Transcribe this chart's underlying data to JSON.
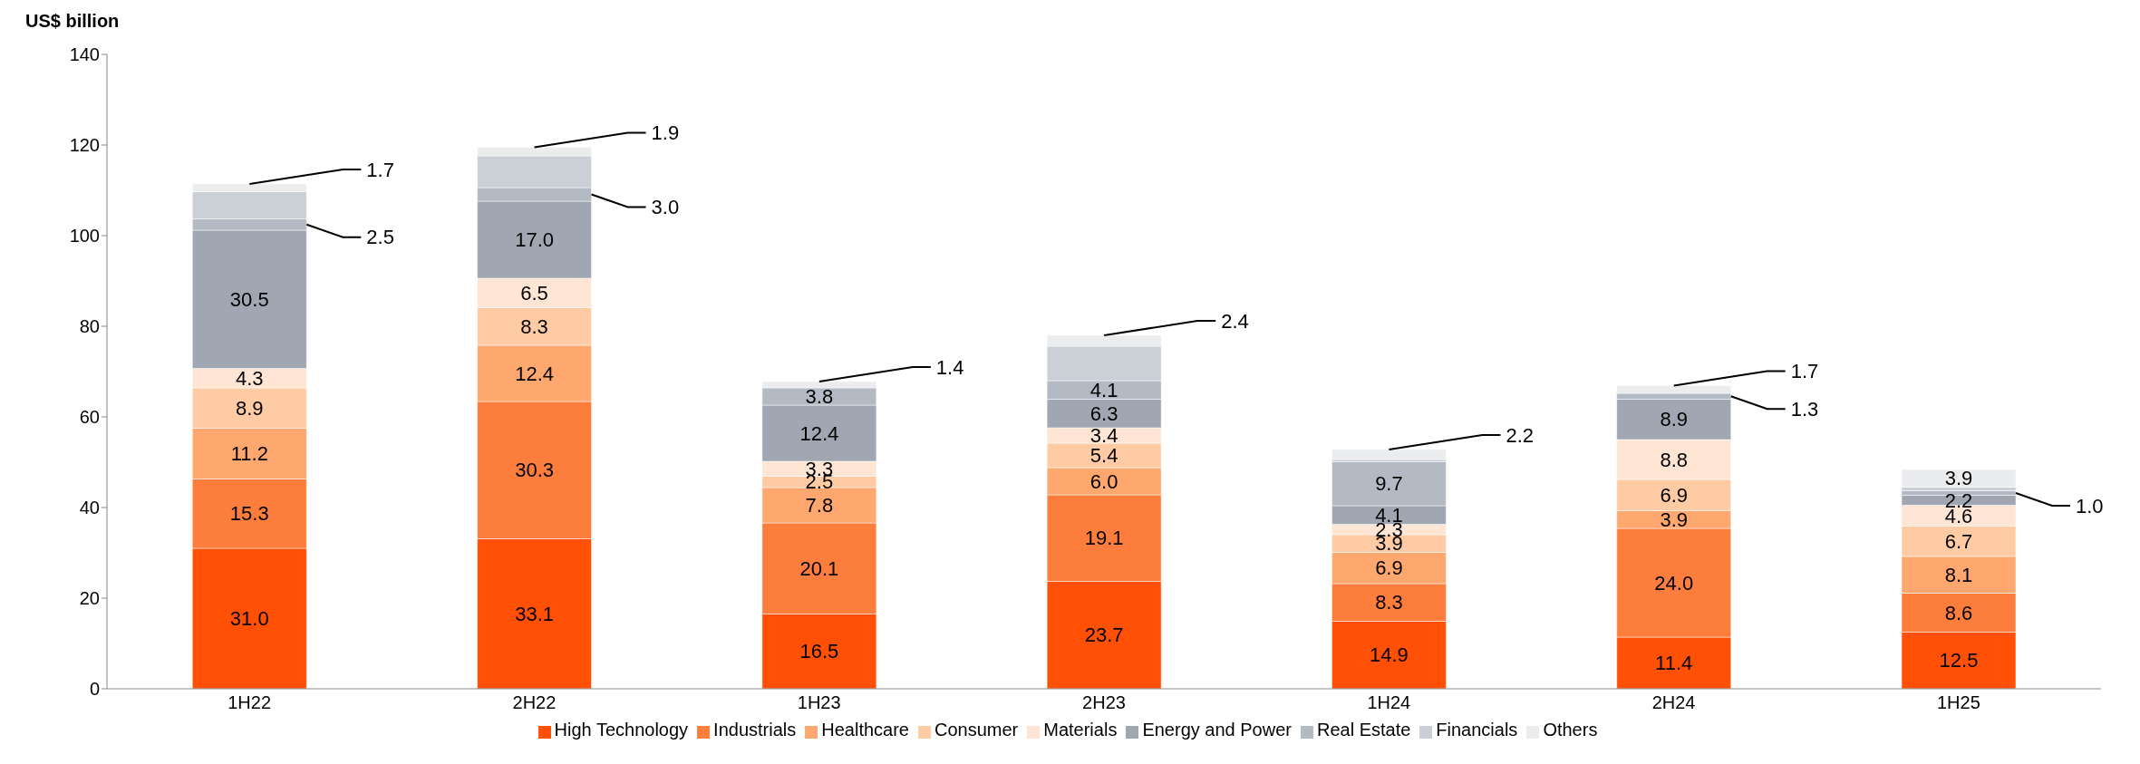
{
  "chart_data": {
    "type": "bar",
    "stacked": true,
    "ylabel": "US$ billion",
    "categories": [
      "1H22",
      "2H22",
      "1H23",
      "2H23",
      "1H24",
      "2H24",
      "1H25"
    ],
    "ylim": [
      0,
      140
    ],
    "yticks": [
      0,
      20,
      40,
      60,
      80,
      100,
      120,
      140
    ],
    "legend": "bottom",
    "series": [
      {
        "name": "High Technology",
        "color": "#ff5005",
        "values": [
          31.0,
          33.1,
          16.5,
          23.7,
          14.9,
          11.4,
          12.5
        ],
        "value_labels": [
          "31.0",
          "33.1",
          "16.5",
          "23.7",
          "14.9",
          "11.4",
          "12.5"
        ]
      },
      {
        "name": "Industrials",
        "color": "#fd7e3c",
        "values": [
          15.3,
          30.3,
          20.1,
          19.1,
          8.3,
          24.0,
          8.6
        ],
        "value_labels": [
          "15.3",
          "30.3",
          "20.1",
          "19.1",
          "8.3",
          "24.0",
          "8.6"
        ]
      },
      {
        "name": "Healthcare",
        "color": "#fea76f",
        "values": [
          11.2,
          12.4,
          7.8,
          6.0,
          6.9,
          3.9,
          8.1
        ],
        "value_labels": [
          "11.2",
          "12.4",
          "7.8",
          "6.0",
          "6.9",
          "3.9",
          "8.1"
        ]
      },
      {
        "name": "Consumer",
        "color": "#ffcba4",
        "values": [
          8.9,
          8.3,
          2.5,
          5.4,
          3.9,
          6.9,
          6.7
        ],
        "value_labels": [
          "8.9",
          "8.3",
          "2.5",
          "5.4",
          "3.9",
          "6.9",
          "6.7"
        ]
      },
      {
        "name": "Materials",
        "color": "#ffe6d4",
        "values": [
          4.3,
          6.5,
          3.3,
          3.4,
          2.3,
          8.8,
          4.6
        ],
        "value_labels": [
          "4.3",
          "6.5",
          "3.3",
          "3.4",
          "2.3",
          "8.8",
          "4.6"
        ]
      },
      {
        "name": "Energy and Power",
        "color": "#a0a6b2",
        "values": [
          30.5,
          17.0,
          12.4,
          6.3,
          4.1,
          8.9,
          2.2
        ],
        "value_labels": [
          "30.5",
          "17.0",
          "12.4",
          "6.3",
          "4.1",
          "8.9",
          "2.2"
        ]
      },
      {
        "name": "Real Estate",
        "color": "#b4bac3",
        "values": [
          2.5,
          3.0,
          3.8,
          4.1,
          9.7,
          1.3,
          1.0
        ],
        "value_labels": [
          "2.5",
          "3.0",
          "3.8",
          "4.1",
          "9.7",
          "1.3",
          "1.0"
        ]
      },
      {
        "name": "Financials",
        "color": "#cbd0d7",
        "values": [
          6.0,
          7.0,
          0,
          7.6,
          0.5,
          0,
          0.8
        ],
        "value_labels": [
          null,
          null,
          null,
          null,
          null,
          null,
          null
        ]
      },
      {
        "name": "Others",
        "color": "#ebecee",
        "values": [
          1.7,
          1.9,
          1.4,
          2.4,
          2.2,
          1.7,
          3.9
        ],
        "value_labels": [
          "1.7",
          "1.9",
          "1.4",
          "2.4",
          "2.2",
          "1.7",
          "3.9"
        ]
      }
    ]
  }
}
